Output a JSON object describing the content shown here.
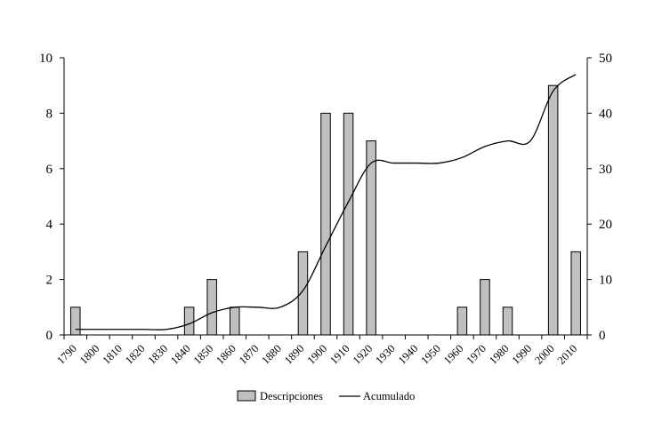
{
  "chart_data": {
    "type": "bar",
    "categories": [
      "1790",
      "1800",
      "1810",
      "1820",
      "1830",
      "1840",
      "1850",
      "1860",
      "1870",
      "1880",
      "1890",
      "1900",
      "1910",
      "1920",
      "1930",
      "1940",
      "1950",
      "1960",
      "1970",
      "1980",
      "1990",
      "2000",
      "2010"
    ],
    "series": [
      {
        "name": "Descripciones",
        "type": "bar",
        "axis": "left",
        "color": "#c0c0c0",
        "values": [
          1,
          0,
          0,
          0,
          0,
          1,
          2,
          1,
          0,
          0,
          3,
          8,
          8,
          7,
          0,
          0,
          0,
          1,
          2,
          1,
          0,
          9,
          3
        ]
      },
      {
        "name": "Acumulado",
        "type": "line",
        "axis": "right",
        "smooth": true,
        "color": "#000000",
        "values": [
          1,
          1,
          1,
          1,
          1,
          2,
          4,
          5,
          5,
          5,
          8,
          16,
          24,
          31,
          31,
          31,
          31,
          32,
          34,
          35,
          35,
          44,
          47
        ]
      }
    ],
    "y_left": {
      "min": 0,
      "max": 10,
      "ticks": [
        0,
        2,
        4,
        6,
        8,
        10
      ]
    },
    "y_right": {
      "min": 0,
      "max": 50,
      "ticks": [
        0,
        10,
        20,
        30,
        40,
        50
      ]
    },
    "legend": {
      "placement": "bottom"
    },
    "grid": false
  }
}
